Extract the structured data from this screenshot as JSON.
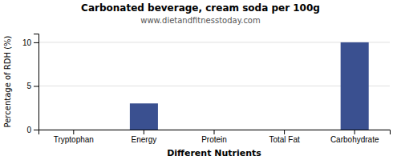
{
  "chart_data": {
    "type": "bar",
    "title": "Carbonated beverage, cream soda per 100g",
    "subtitle": "www.dietandfitnesstoday.com",
    "xlabel": "Different Nutrients",
    "ylabel": "Percentage of RDH (%)",
    "categories": [
      "Tryptophan",
      "Energy",
      "Protein",
      "Total Fat",
      "Carbohydrate"
    ],
    "values": [
      0,
      3,
      0,
      0,
      10
    ],
    "color": "#3a5090",
    "ylim": [
      0,
      11
    ],
    "yticks": [
      0,
      5,
      10
    ],
    "grid": true
  }
}
